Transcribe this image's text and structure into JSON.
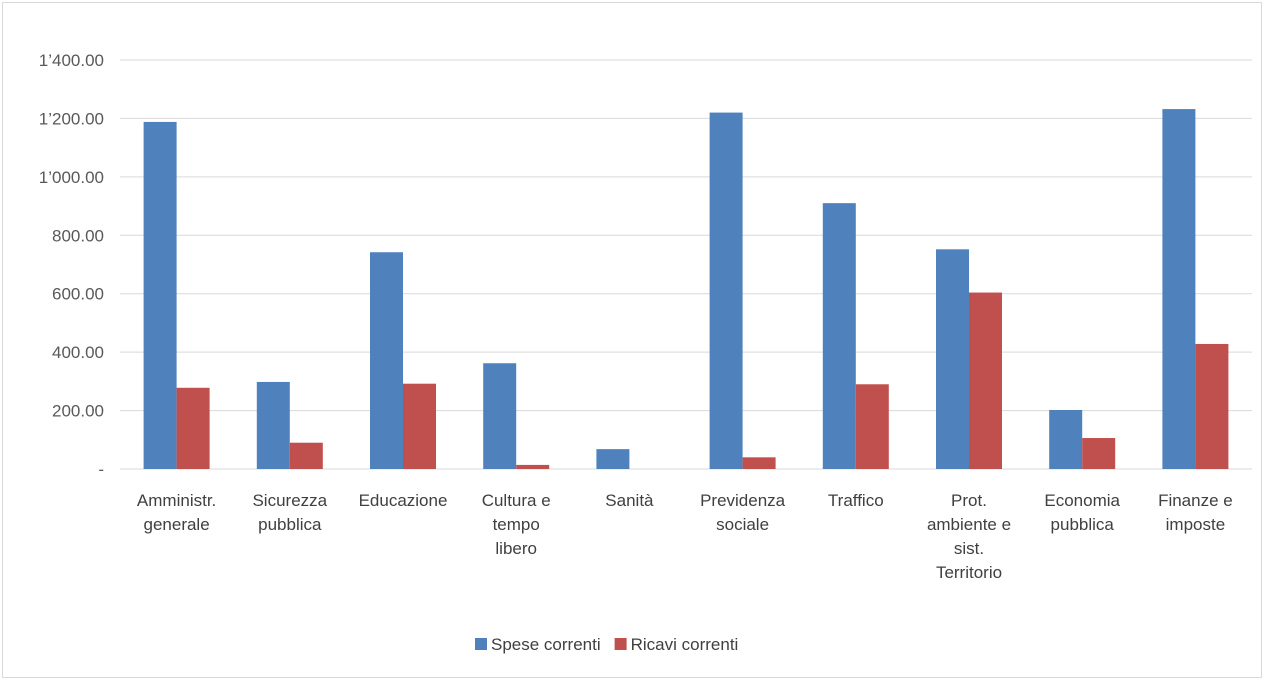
{
  "chart_data": {
    "type": "bar",
    "title": "",
    "xlabel": "",
    "ylabel": "",
    "ylim": [
      0,
      1400
    ],
    "yticks": [
      0,
      200,
      400,
      600,
      800,
      1000,
      1200,
      1400
    ],
    "ytick_labels": [
      "-",
      "200.00",
      "400.00",
      "600.00",
      "800.00",
      "1’000.00",
      "1’200.00",
      "1’400.00"
    ],
    "grid": true,
    "legend_position": "bottom",
    "categories": [
      [
        "Amministr.",
        "generale"
      ],
      [
        "Sicurezza",
        "pubblica"
      ],
      [
        "Educazione"
      ],
      [
        "Cultura e",
        "tempo",
        "libero"
      ],
      [
        "Sanità"
      ],
      [
        "Previdenza",
        "sociale"
      ],
      [
        "Traffico"
      ],
      [
        "Prot.",
        "ambiente e",
        "sist.",
        "Territorio"
      ],
      [
        "Economia",
        "pubblica"
      ],
      [
        "Finanze e",
        "imposte"
      ]
    ],
    "series": [
      {
        "name": "Spese correnti",
        "color": "#4f81bd",
        "values": [
          1188,
          298,
          742,
          362,
          68,
          1220,
          910,
          752,
          202,
          1232
        ]
      },
      {
        "name": "Ricavi correnti",
        "color": "#c0504d",
        "values": [
          278,
          90,
          292,
          14,
          0,
          40,
          290,
          604,
          106,
          428
        ]
      }
    ]
  }
}
